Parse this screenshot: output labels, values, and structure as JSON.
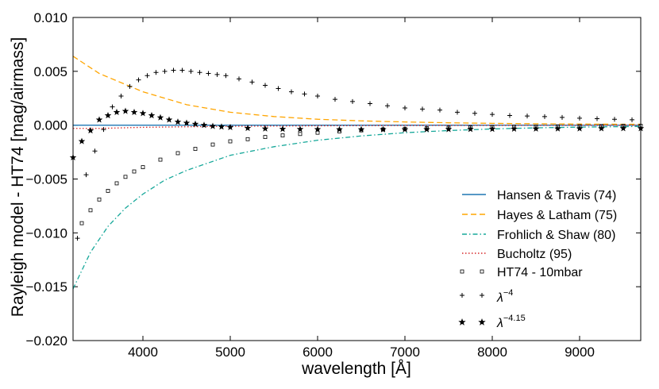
{
  "chart_data": {
    "type": "line",
    "title": "",
    "xlabel": "wavelength [Å]",
    "ylabel": "Rayleigh model - HT74 [mag/airmass]",
    "xlim": [
      3200,
      9700
    ],
    "ylim": [
      -0.02,
      0.01
    ],
    "xticks": [
      4000,
      5000,
      6000,
      7000,
      8000,
      9000
    ],
    "xtick_labels": [
      "4000",
      "5000",
      "6000",
      "7000",
      "8000",
      "9000"
    ],
    "yticks": [
      -0.02,
      -0.015,
      -0.01,
      -0.005,
      0.0,
      0.005,
      0.01
    ],
    "ytick_labels": [
      "−0.020",
      "−0.015",
      "−0.010",
      "−0.005",
      "0.000",
      "0.005",
      "0.010"
    ],
    "grid": false,
    "legend_position": "lower-right",
    "series": [
      {
        "name": "Hansen & Travis (74)",
        "style": "solid",
        "color": "#1f77b4",
        "x": [
          3200,
          9700
        ],
        "y": [
          0.0,
          0.0
        ]
      },
      {
        "name": "Hayes & Latham (75)",
        "style": "dashed",
        "color": "#ffa500",
        "x": [
          3200,
          3500,
          4000,
          4500,
          5000,
          5500,
          6000,
          6500,
          7000,
          7500,
          8000,
          8500,
          9000,
          9700
        ],
        "y": [
          0.0064,
          0.0048,
          0.0031,
          0.0019,
          0.0012,
          0.0008,
          0.00055,
          0.0004,
          0.0003,
          0.00022,
          0.00017,
          0.00013,
          0.0001,
          8e-05
        ]
      },
      {
        "name": "Frohlich & Shaw (80)",
        "style": "dashdot",
        "color": "#17a89a",
        "x": [
          3200,
          3400,
          3600,
          3800,
          4000,
          4250,
          4500,
          5000,
          5500,
          6000,
          6500,
          7000,
          7500,
          8000,
          8500,
          9000,
          9700
        ],
        "y": [
          -0.0152,
          -0.0118,
          -0.0094,
          -0.0077,
          -0.0064,
          -0.0051,
          -0.0042,
          -0.0028,
          -0.002,
          -0.0014,
          -0.001,
          -0.0007,
          -0.0005,
          -0.00035,
          -0.00025,
          -0.00018,
          -0.00012
        ]
      },
      {
        "name": "Bucholtz (95)",
        "style": "dotted",
        "color": "#d62728",
        "x": [
          3200,
          3500,
          4000,
          4500,
          5000,
          6000,
          7000,
          8000,
          9000,
          9700
        ],
        "y": [
          -0.0003,
          -0.0003,
          -0.0002,
          -0.00015,
          -0.0001,
          -6e-05,
          -3e-05,
          -2e-05,
          -1e-05,
          -1e-05
        ]
      },
      {
        "name": "HT74 - 10mbar",
        "style": "square-markers",
        "color": "#000000",
        "x": [
          3300,
          3400,
          3500,
          3600,
          3700,
          3800,
          3900,
          4000,
          4200,
          4400,
          4600,
          4800,
          5000,
          5200,
          5400,
          5600,
          5800,
          6000,
          6250,
          6500,
          6750,
          7000,
          7250,
          7500,
          7750,
          8000,
          8250,
          8500,
          8750,
          9000,
          9250,
          9500,
          9700
        ],
        "y": [
          -0.0091,
          -0.0079,
          -0.0069,
          -0.0061,
          -0.0054,
          -0.0048,
          -0.0043,
          -0.0039,
          -0.0032,
          -0.0026,
          -0.0022,
          -0.0018,
          -0.0015,
          -0.0013,
          -0.0011,
          -0.00095,
          -0.00082,
          -0.0007,
          -0.00058,
          -0.00048,
          -0.0004,
          -0.00034,
          -0.00028,
          -0.00024,
          -0.0002,
          -0.00017,
          -0.00015,
          -0.00013,
          -0.00011,
          -0.0001,
          -8e-05,
          -7e-05,
          -6e-05
        ]
      },
      {
        "name": "λ^-4",
        "style": "plus-markers",
        "color": "#000000",
        "x": [
          3250,
          3350,
          3450,
          3550,
          3650,
          3750,
          3850,
          3950,
          4050,
          4150,
          4250,
          4350,
          4450,
          4550,
          4650,
          4750,
          4850,
          4950,
          5100,
          5250,
          5400,
          5550,
          5700,
          5850,
          6000,
          6200,
          6400,
          6600,
          6800,
          7000,
          7200,
          7400,
          7600,
          7800,
          8000,
          8200,
          8400,
          8600,
          8800,
          9000,
          9200,
          9400,
          9600
        ],
        "y": [
          -0.0105,
          -0.0046,
          -0.0024,
          -0.0004,
          0.0017,
          0.0027,
          0.0036,
          0.0042,
          0.0046,
          0.0049,
          0.005,
          0.0051,
          0.0051,
          0.005,
          0.0049,
          0.0048,
          0.0047,
          0.0046,
          0.0043,
          0.004,
          0.0037,
          0.0034,
          0.0031,
          0.0029,
          0.0027,
          0.0024,
          0.0022,
          0.002,
          0.0018,
          0.0016,
          0.0015,
          0.0014,
          0.0012,
          0.0011,
          0.001,
          0.0009,
          0.00085,
          0.0008,
          0.00072,
          0.00065,
          0.0006,
          0.00055,
          0.0005
        ]
      },
      {
        "name": "λ^-4.15",
        "style": "star-markers",
        "color": "#000000",
        "x": [
          3200,
          3300,
          3400,
          3500,
          3600,
          3700,
          3800,
          3900,
          4000,
          4100,
          4200,
          4300,
          4400,
          4500,
          4600,
          4700,
          4800,
          4900,
          5000,
          5200,
          5400,
          5600,
          5800,
          6000,
          6250,
          6500,
          6750,
          7000,
          7250,
          7500,
          7750,
          8000,
          8250,
          8500,
          8750,
          9000,
          9250,
          9500,
          9700
        ],
        "y": [
          -0.003,
          -0.0015,
          -0.0005,
          0.0005,
          0.0009,
          0.0012,
          0.0013,
          0.0012,
          0.0011,
          0.0009,
          0.0007,
          0.0005,
          0.0003,
          0.0002,
          0.0001,
          0.0,
          -0.0001,
          -0.00015,
          -0.0002,
          -0.00028,
          -0.00033,
          -0.00036,
          -0.00038,
          -0.00039,
          -0.0004,
          -0.0004,
          -0.0004,
          -0.0004,
          -0.00039,
          -0.00038,
          -0.00037,
          -0.00036,
          -0.00035,
          -0.00034,
          -0.00033,
          -0.00032,
          -0.00031,
          -0.0003,
          -0.0003
        ]
      }
    ]
  },
  "legend": [
    {
      "label": "Hansen & Travis (74)"
    },
    {
      "label": "Hayes & Latham (75)"
    },
    {
      "label": "Frohlich & Shaw (80)"
    },
    {
      "label": "Bucholtz (95)"
    },
    {
      "label": "HT74 - 10mbar"
    },
    {
      "label": "λ",
      "exponent": "−4"
    },
    {
      "label": "λ",
      "exponent": "−4.15"
    }
  ]
}
